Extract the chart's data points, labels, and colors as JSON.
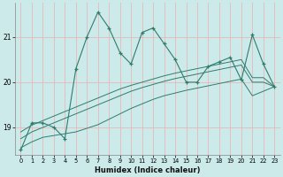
{
  "xlabel": "Humidex (Indice chaleur)",
  "x": [
    0,
    1,
    2,
    3,
    4,
    5,
    6,
    7,
    8,
    9,
    10,
    11,
    12,
    13,
    14,
    15,
    16,
    17,
    18,
    19,
    20,
    21,
    22,
    23
  ],
  "y_main": [
    18.5,
    19.1,
    19.1,
    19.0,
    18.75,
    20.3,
    21.0,
    21.55,
    21.2,
    20.65,
    20.4,
    21.1,
    21.2,
    20.85,
    20.5,
    20.0,
    20.0,
    20.35,
    20.45,
    20.55,
    20.05,
    21.05,
    20.4,
    19.9
  ],
  "y_line1": [
    18.9,
    19.05,
    19.15,
    19.25,
    19.35,
    19.45,
    19.55,
    19.65,
    19.75,
    19.85,
    19.93,
    20.0,
    20.07,
    20.14,
    20.2,
    20.25,
    20.3,
    20.35,
    20.4,
    20.45,
    20.5,
    20.1,
    20.1,
    19.9
  ],
  "y_line2": [
    18.75,
    18.9,
    19.0,
    19.1,
    19.2,
    19.3,
    19.4,
    19.5,
    19.6,
    19.7,
    19.8,
    19.88,
    19.95,
    20.02,
    20.08,
    20.13,
    20.18,
    20.23,
    20.28,
    20.33,
    20.38,
    20.0,
    20.0,
    19.9
  ],
  "y_line3": [
    18.55,
    18.68,
    18.78,
    18.82,
    18.86,
    18.9,
    18.98,
    19.06,
    19.18,
    19.3,
    19.42,
    19.52,
    19.62,
    19.7,
    19.76,
    19.82,
    19.87,
    19.92,
    19.97,
    20.02,
    20.07,
    19.7,
    19.8,
    19.9
  ],
  "color": "#2e7d6e",
  "bg_color": "#cceaea",
  "grid_color": "#e8b8b8",
  "ylim": [
    18.4,
    21.75
  ],
  "yticks": [
    19,
    20,
    21
  ],
  "xticks": [
    0,
    1,
    2,
    3,
    4,
    5,
    6,
    7,
    8,
    9,
    10,
    11,
    12,
    13,
    14,
    15,
    16,
    17,
    18,
    19,
    20,
    21,
    22,
    23
  ]
}
